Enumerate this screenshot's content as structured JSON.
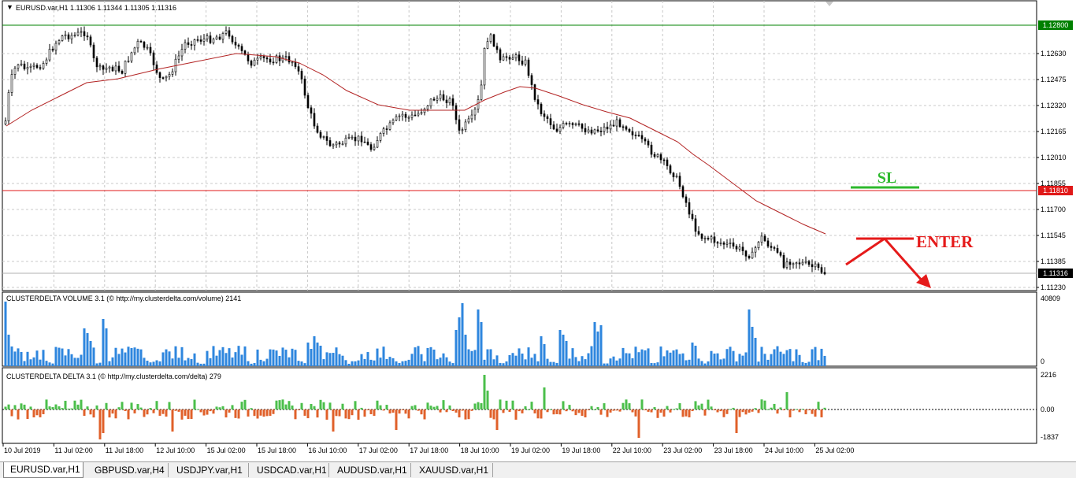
{
  "main": {
    "symbol_header": "EURUSD.var,H1  1.11306 1.11344 1.11305 1.11316",
    "price_labels": [
      "1.12630",
      "1.12475",
      "1.12320",
      "1.12165",
      "1.12010",
      "1.11855",
      "1.11700",
      "1.11545",
      "1.11385",
      "1.11230"
    ],
    "tagged_prices": [
      {
        "name": "upper-level",
        "text": "1.12800",
        "color": "#008000"
      },
      {
        "name": "stop-level",
        "text": "1.11810",
        "color": "#e01818"
      },
      {
        "name": "bid-price",
        "text": "1.11316",
        "color": "#000000"
      }
    ],
    "annotations": {
      "sl": "SL",
      "enter": "ENTER",
      "sl_color": "#2db92d",
      "enter_color": "#e51a1a"
    }
  },
  "volume_panel": {
    "title": "CLUSTERDELTA VOLUME 3.1 (© http://my.clusterdelta.com/volume) 2141",
    "max_label": "40809",
    "min_label": "0",
    "bar_color": "#2e86de"
  },
  "delta_panel": {
    "title": "CLUSTERDELTA DELTA 3.1 (© http://my.clusterdelta.com/delta) 279",
    "max_label": "2216",
    "zero_label": "0.00",
    "min_label": "-1837",
    "pos_color": "#4bbf4b",
    "neg_color": "#e0602a"
  },
  "time_labels": [
    "10 Jul 2019",
    "11 Jul 02:00",
    "11 Jul 18:00",
    "12 Jul 10:00",
    "15 Jul 02:00",
    "15 Jul 18:00",
    "16 Jul 10:00",
    "17 Jul 02:00",
    "17 Jul 18:00",
    "18 Jul 10:00",
    "19 Jul 02:00",
    "19 Jul 18:00",
    "22 Jul 10:00",
    "23 Jul 02:00",
    "23 Jul 18:00",
    "24 Jul 10:00",
    "25 Jul 02:00"
  ],
  "tabs": [
    {
      "label": "EURUSD.var,H1",
      "active": true
    },
    {
      "label": "GBPUSD.var,H4",
      "active": false
    },
    {
      "label": "USDJPY.var,H1",
      "active": false
    },
    {
      "label": "USDCAD.var,H1",
      "active": false
    },
    {
      "label": "AUDUSD.var,H1",
      "active": false
    },
    {
      "label": "XAUUSD.var,H1",
      "active": false
    }
  ]
}
